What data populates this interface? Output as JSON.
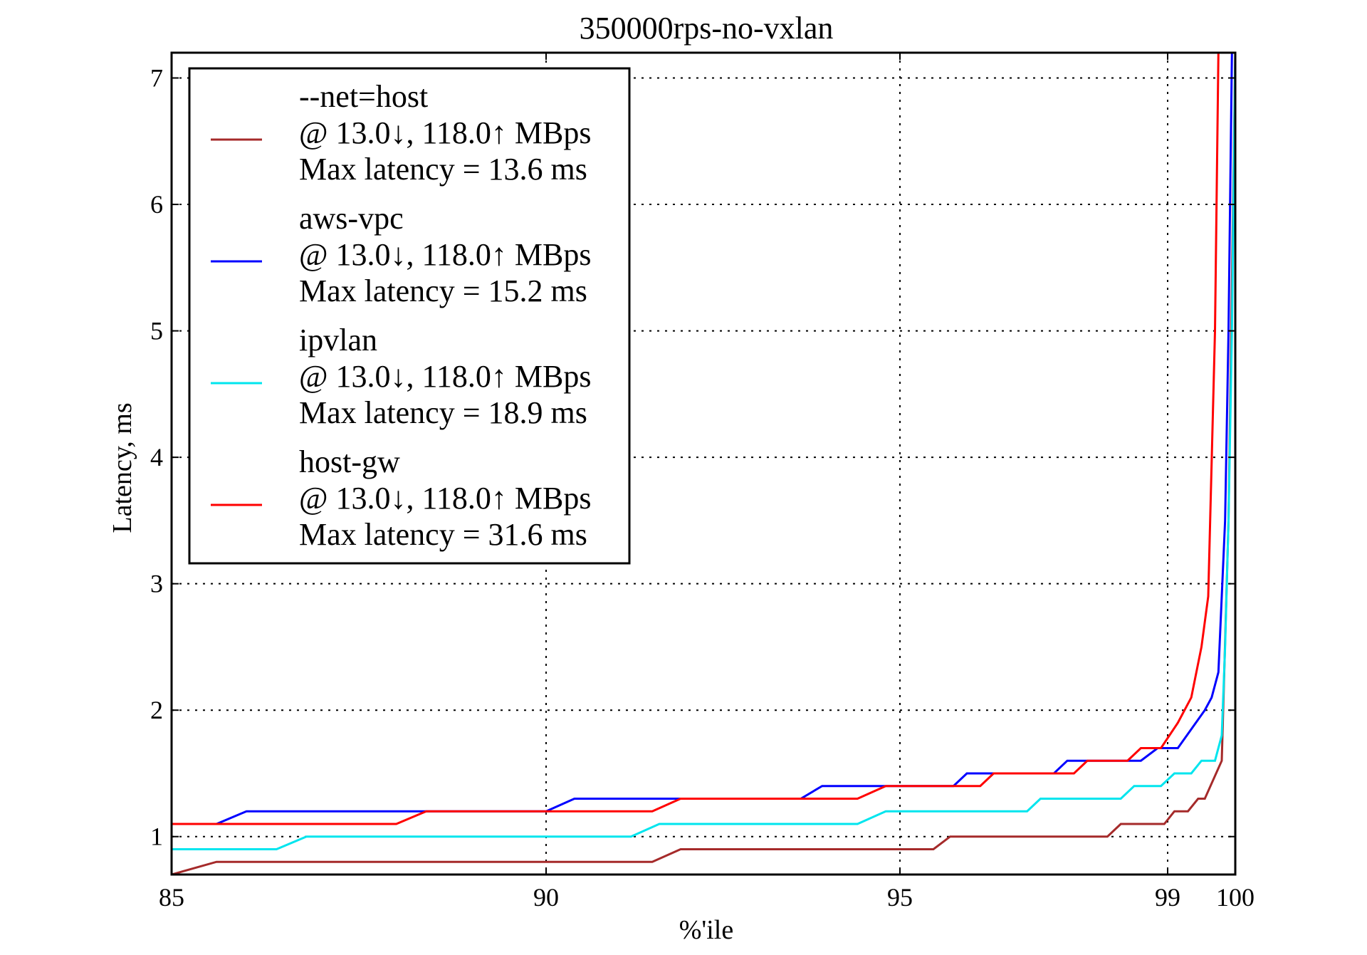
{
  "chart_data": {
    "type": "line",
    "title": "350000rps-no-vxlan",
    "xlabel": "%'ile",
    "ylabel": "Latency, ms",
    "x_tick_labels": [
      "85",
      "90",
      "95",
      "99",
      "100"
    ],
    "y_ticks": [
      1,
      2,
      3,
      4,
      5,
      6,
      7
    ],
    "ylim": [
      0.7,
      7.2
    ],
    "grid": true,
    "legend_position": "top-left",
    "series": [
      {
        "name": "--net=host",
        "throughput": "@ 13.0↓, 118.0↑ MBps",
        "max_latency": "Max latency = 13.6 ms",
        "color": "#a52a2a",
        "points": [
          [
            85,
            0.7
          ],
          [
            85.6,
            0.8
          ],
          [
            91.5,
            0.8
          ],
          [
            91.9,
            0.9
          ],
          [
            95.5,
            0.9
          ],
          [
            95.75,
            1.0
          ],
          [
            98.1,
            1.0
          ],
          [
            98.3,
            1.1
          ],
          [
            98.95,
            1.1
          ],
          [
            99.1,
            1.2
          ],
          [
            99.3,
            1.2
          ],
          [
            99.45,
            1.3
          ],
          [
            99.55,
            1.3
          ],
          [
            99.8,
            1.6
          ],
          [
            99.9,
            3.5
          ],
          [
            100,
            7.2
          ]
        ]
      },
      {
        "name": "aws-vpc",
        "throughput": "@ 13.0↓, 118.0↑ MBps",
        "max_latency": "Max latency = 15.2 ms",
        "color": "#0000ff",
        "points": [
          [
            85,
            1.1
          ],
          [
            85.6,
            1.1
          ],
          [
            86.0,
            1.2
          ],
          [
            90.0,
            1.2
          ],
          [
            90.4,
            1.3
          ],
          [
            93.6,
            1.3
          ],
          [
            93.9,
            1.4
          ],
          [
            95.8,
            1.4
          ],
          [
            96.0,
            1.5
          ],
          [
            97.3,
            1.5
          ],
          [
            97.5,
            1.6
          ],
          [
            98.6,
            1.6
          ],
          [
            98.85,
            1.7
          ],
          [
            99.15,
            1.7
          ],
          [
            99.55,
            2.0
          ],
          [
            99.65,
            2.1
          ],
          [
            99.75,
            2.3
          ],
          [
            99.85,
            3.5
          ],
          [
            99.9,
            5.0
          ],
          [
            99.95,
            7.2
          ]
        ]
      },
      {
        "name": "ipvlan",
        "throughput": "@ 13.0↓, 118.0↑ MBps",
        "max_latency": "Max latency = 18.9 ms",
        "color": "#00e5ee",
        "points": [
          [
            85,
            0.9
          ],
          [
            86.4,
            0.9
          ],
          [
            86.8,
            1.0
          ],
          [
            91.2,
            1.0
          ],
          [
            91.6,
            1.1
          ],
          [
            94.4,
            1.1
          ],
          [
            94.8,
            1.2
          ],
          [
            96.9,
            1.2
          ],
          [
            97.1,
            1.3
          ],
          [
            98.3,
            1.3
          ],
          [
            98.5,
            1.4
          ],
          [
            98.9,
            1.4
          ],
          [
            99.1,
            1.5
          ],
          [
            99.35,
            1.5
          ],
          [
            99.5,
            1.6
          ],
          [
            99.7,
            1.6
          ],
          [
            99.8,
            1.8
          ],
          [
            99.85,
            2.5
          ],
          [
            99.9,
            3.5
          ],
          [
            99.95,
            5.0
          ],
          [
            100,
            7.2
          ]
        ]
      },
      {
        "name": "host-gw",
        "throughput": "@ 13.0↓, 118.0↑ MBps",
        "max_latency": "Max latency = 31.6 ms",
        "color": "#ff0000",
        "points": [
          [
            85,
            1.1
          ],
          [
            88.0,
            1.1
          ],
          [
            88.4,
            1.2
          ],
          [
            91.5,
            1.2
          ],
          [
            91.9,
            1.3
          ],
          [
            94.4,
            1.3
          ],
          [
            94.8,
            1.4
          ],
          [
            96.2,
            1.4
          ],
          [
            96.4,
            1.5
          ],
          [
            97.6,
            1.5
          ],
          [
            97.8,
            1.6
          ],
          [
            98.4,
            1.6
          ],
          [
            98.6,
            1.7
          ],
          [
            98.9,
            1.7
          ],
          [
            99.15,
            1.9
          ],
          [
            99.35,
            2.1
          ],
          [
            99.5,
            2.5
          ],
          [
            99.6,
            2.9
          ],
          [
            99.7,
            5.0
          ],
          [
            99.75,
            7.2
          ]
        ]
      }
    ]
  }
}
